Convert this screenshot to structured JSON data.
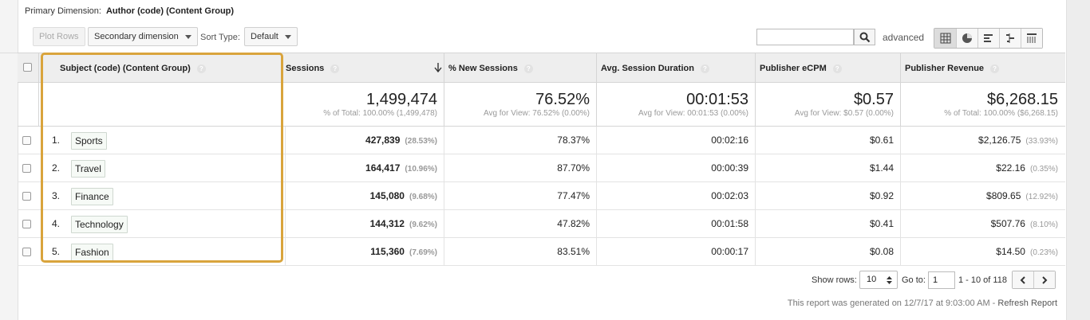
{
  "primary_dimension": {
    "label": "Primary Dimension:",
    "value": "Author (code) (Content Group)"
  },
  "toolbar": {
    "plot_rows": "Plot Rows",
    "secondary_dimension": "Secondary dimension",
    "sort_type_label": "Sort Type:",
    "sort_type_value": "Default",
    "search_value": "",
    "advanced": "advanced"
  },
  "table": {
    "headers": {
      "dimension": "Subject (code) (Content Group)",
      "sessions": "Sessions",
      "new_sessions": "% New Sessions",
      "avg_duration": "Avg. Session Duration",
      "ecpm": "Publisher eCPM",
      "revenue": "Publisher Revenue"
    },
    "totals": {
      "sessions": {
        "value": "1,499,474",
        "sub": "% of Total: 100.00% (1,499,478)"
      },
      "new_sessions": {
        "value": "76.52%",
        "sub": "Avg for View: 76.52% (0.00%)"
      },
      "avg_duration": {
        "value": "00:01:53",
        "sub": "Avg for View: 00:01:53 (0.00%)"
      },
      "ecpm": {
        "value": "$0.57",
        "sub": "Avg for View: $0.57 (0.00%)"
      },
      "revenue": {
        "value": "$6,268.15",
        "sub": "% of Total: 100.00% ($6,268.15)"
      }
    },
    "rows": [
      {
        "num": "1.",
        "subject": "Sports",
        "sessions": "427,839",
        "sessions_pct": "(28.53%)",
        "new_sessions": "78.37%",
        "duration": "00:02:16",
        "ecpm": "$0.61",
        "revenue": "$2,126.75",
        "revenue_pct": "(33.93%)"
      },
      {
        "num": "2.",
        "subject": "Travel",
        "sessions": "164,417",
        "sessions_pct": "(10.96%)",
        "new_sessions": "87.70%",
        "duration": "00:00:39",
        "ecpm": "$1.44",
        "revenue": "$22.16",
        "revenue_pct": "(0.35%)"
      },
      {
        "num": "3.",
        "subject": "Finance",
        "sessions": "145,080",
        "sessions_pct": "(9.68%)",
        "new_sessions": "77.47%",
        "duration": "00:02:03",
        "ecpm": "$0.92",
        "revenue": "$809.65",
        "revenue_pct": "(12.92%)"
      },
      {
        "num": "4.",
        "subject": "Technology",
        "sessions": "144,312",
        "sessions_pct": "(9.62%)",
        "new_sessions": "47.82%",
        "duration": "00:01:58",
        "ecpm": "$0.41",
        "revenue": "$507.76",
        "revenue_pct": "(8.10%)"
      },
      {
        "num": "5.",
        "subject": "Fashion",
        "sessions": "115,360",
        "sessions_pct": "(7.69%)",
        "new_sessions": "83.51%",
        "duration": "00:00:17",
        "ecpm": "$0.08",
        "revenue": "$14.50",
        "revenue_pct": "(0.23%)"
      }
    ]
  },
  "footer": {
    "show_rows_label": "Show rows:",
    "show_rows_value": "10",
    "goto_label": "Go to:",
    "goto_value": "1",
    "range": "1 - 10 of 118",
    "generated": "This report was generated on 12/7/17 at 9:03:00 AM - ",
    "refresh": "Refresh Report"
  },
  "colors": {
    "highlight": "#d9a43c",
    "header_bg": "#eeeeee"
  },
  "icons": [
    "search-icon",
    "grid-view-icon",
    "pie-view-icon",
    "bar-view-icon",
    "comparison-view-icon",
    "pivot-view-icon",
    "sort-down-arrow-icon",
    "help-icon",
    "chevron-left-icon",
    "chevron-right-icon"
  ]
}
